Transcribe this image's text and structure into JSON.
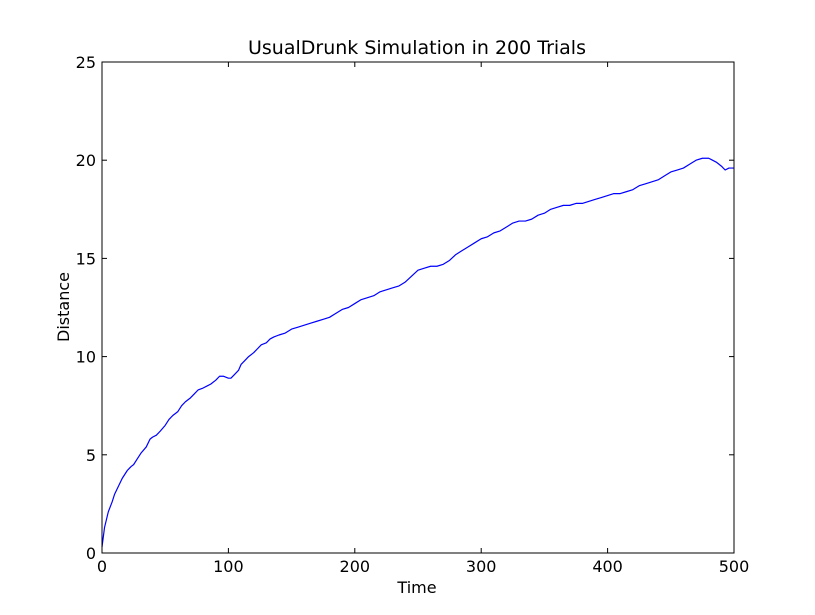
{
  "chart_data": {
    "type": "line",
    "title": "UsualDrunk Simulation in 200 Trials",
    "xlabel": "Time",
    "ylabel": "Distance",
    "xlim": [
      0,
      500
    ],
    "ylim": [
      0,
      25
    ],
    "xticks": [
      0,
      100,
      200,
      300,
      400,
      500
    ],
    "yticks": [
      0,
      5,
      10,
      15,
      20,
      25
    ],
    "grid": false,
    "series": [
      {
        "color": "#0000ff",
        "x": [
          0,
          2,
          5,
          8,
          10,
          13,
          16,
          20,
          23,
          25,
          28,
          31,
          35,
          38,
          40,
          43,
          46,
          50,
          53,
          56,
          60,
          63,
          66,
          70,
          73,
          76,
          80,
          83,
          86,
          90,
          93,
          96,
          100,
          102,
          105,
          108,
          110,
          113,
          116,
          120,
          123,
          126,
          130,
          133,
          136,
          140,
          145,
          150,
          155,
          160,
          165,
          170,
          175,
          180,
          185,
          190,
          195,
          200,
          205,
          210,
          215,
          220,
          225,
          230,
          235,
          240,
          245,
          250,
          255,
          260,
          265,
          270,
          275,
          280,
          285,
          290,
          295,
          300,
          305,
          310,
          315,
          320,
          325,
          330,
          335,
          340,
          345,
          350,
          355,
          360,
          365,
          370,
          375,
          380,
          385,
          390,
          395,
          400,
          405,
          410,
          415,
          420,
          425,
          430,
          435,
          440,
          445,
          450,
          455,
          460,
          465,
          470,
          475,
          480,
          483,
          486,
          490,
          493,
          496,
          500
        ],
        "y": [
          0.3,
          1.3,
          2.1,
          2.6,
          3.0,
          3.4,
          3.8,
          4.2,
          4.4,
          4.5,
          4.8,
          5.1,
          5.4,
          5.8,
          5.9,
          6.0,
          6.2,
          6.5,
          6.8,
          7.0,
          7.2,
          7.5,
          7.7,
          7.9,
          8.1,
          8.3,
          8.4,
          8.5,
          8.6,
          8.8,
          9.0,
          9.0,
          8.9,
          8.9,
          9.1,
          9.3,
          9.6,
          9.8,
          10.0,
          10.2,
          10.4,
          10.6,
          10.7,
          10.9,
          11.0,
          11.1,
          11.2,
          11.4,
          11.5,
          11.6,
          11.7,
          11.8,
          11.9,
          12.0,
          12.2,
          12.4,
          12.5,
          12.7,
          12.9,
          13.0,
          13.1,
          13.3,
          13.4,
          13.5,
          13.6,
          13.8,
          14.1,
          14.4,
          14.5,
          14.6,
          14.6,
          14.7,
          14.9,
          15.2,
          15.4,
          15.6,
          15.8,
          16.0,
          16.1,
          16.3,
          16.4,
          16.6,
          16.8,
          16.9,
          16.9,
          17.0,
          17.2,
          17.3,
          17.5,
          17.6,
          17.7,
          17.7,
          17.8,
          17.8,
          17.9,
          18.0,
          18.1,
          18.2,
          18.3,
          18.3,
          18.4,
          18.5,
          18.7,
          18.8,
          18.9,
          19.0,
          19.2,
          19.4,
          19.5,
          19.6,
          19.8,
          20.0,
          20.1,
          20.1,
          20.0,
          19.9,
          19.7,
          19.5,
          19.6,
          19.6
        ]
      }
    ]
  }
}
